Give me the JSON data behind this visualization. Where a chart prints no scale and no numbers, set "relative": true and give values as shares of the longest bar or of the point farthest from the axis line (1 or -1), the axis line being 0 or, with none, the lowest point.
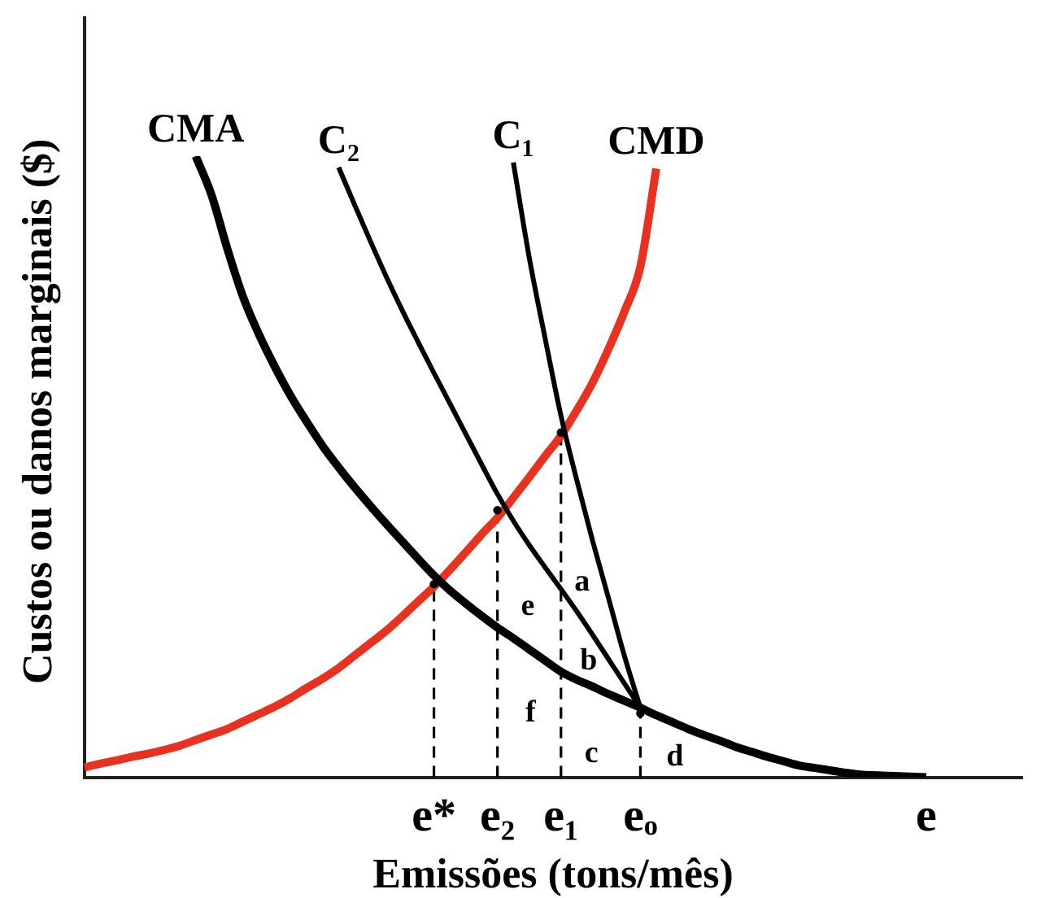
{
  "chart_data": {
    "type": "line",
    "relative": true,
    "xlabel": "Emissões (tons/mês)",
    "ylabel": "Custos ou danos marginais ($)",
    "categories": [
      null,
      null,
      null,
      null,
      null,
      null,
      null,
      null,
      null,
      null,
      null,
      null,
      null,
      null,
      null,
      null,
      null,
      null,
      null,
      null,
      null,
      null,
      "e*",
      null,
      null,
      null,
      "e₂",
      null,
      null,
      null,
      "e₁",
      null,
      null,
      null,
      null,
      "eₒ",
      null,
      null,
      null,
      null,
      null,
      null,
      null,
      null,
      null,
      null,
      null,
      null,
      null,
      null,
      null,
      null,
      null,
      "e",
      null,
      null,
      null,
      null,
      null,
      null
    ],
    "series": [
      {
        "name": "CMA",
        "color": "#000000",
        "values": [
          null,
          null,
          null,
          null,
          null,
          null,
          null,
          1,
          0.937,
          0.85,
          0.772,
          0.712,
          0.66,
          0.613,
          0.572,
          0.533,
          0.499,
          0.467,
          0.437,
          0.408,
          0.38,
          0.352,
          0.325,
          0.301,
          0.28,
          0.26,
          0.241,
          0.224,
          0.206,
          0.188,
          0.17,
          0.157,
          0.146,
          0.134,
          0.123,
          0.112,
          0.1,
          0.089,
          0.078,
          0.068,
          0.059,
          0.049,
          0.041,
          0.033,
          0.026,
          0.019,
          0.015,
          0.011,
          0.007,
          0.004,
          0.003,
          0.002,
          0.001,
          0,
          null,
          null,
          null,
          null,
          null,
          null
        ]
      },
      {
        "name": "C₂",
        "color": "#000000",
        "values": [
          null,
          null,
          null,
          null,
          null,
          null,
          null,
          null,
          null,
          null,
          null,
          null,
          null,
          null,
          null,
          null,
          0.982,
          0.922,
          0.863,
          0.806,
          0.752,
          0.701,
          0.651,
          0.602,
          0.553,
          0.504,
          0.456,
          0.413,
          0.374,
          0.338,
          0.303,
          0.267,
          0.229,
          0.19,
          0.151,
          0.112,
          null,
          null,
          null,
          null,
          null,
          null,
          null,
          null,
          null,
          null,
          null,
          null,
          null,
          null,
          null,
          null,
          null,
          null,
          null,
          null,
          null,
          null,
          null,
          null
        ]
      },
      {
        "name": "C₁",
        "color": "#000000",
        "values": [
          null,
          null,
          null,
          null,
          null,
          null,
          null,
          null,
          null,
          null,
          null,
          null,
          null,
          null,
          null,
          null,
          null,
          null,
          null,
          null,
          null,
          null,
          null,
          null,
          null,
          null,
          null,
          0.99,
          0.837,
          0.707,
          0.582,
          0.478,
          0.38,
          0.288,
          0.195,
          0.112,
          null,
          null,
          null,
          null,
          null,
          null,
          null,
          null,
          null,
          null,
          null,
          null,
          null,
          null,
          null,
          null,
          null,
          null,
          null,
          null,
          null,
          null,
          null,
          null
        ]
      },
      {
        "name": "CMD",
        "color": "#e8311f",
        "values": [
          0.016,
          0.022,
          0.027,
          0.033,
          0.038,
          0.044,
          0.051,
          0.06,
          0.069,
          0.078,
          0.09,
          0.102,
          0.114,
          0.128,
          0.144,
          0.159,
          0.176,
          0.196,
          0.216,
          0.236,
          0.259,
          0.283,
          0.307,
          0.334,
          0.362,
          0.391,
          0.418,
          0.45,
          0.483,
          0.517,
          0.55,
          0.591,
          0.636,
          0.69,
          0.75,
          0.822,
          0.98,
          null,
          null,
          null,
          null,
          null,
          null,
          null,
          null,
          null,
          null,
          null,
          null,
          null,
          null,
          null,
          null,
          null,
          null,
          null,
          null,
          null,
          null,
          null
        ]
      },
      {
        "type": "lollipop",
        "color": "#000000",
        "line_style": "dashed",
        "marker": "circle",
        "values": [
          null,
          null,
          null,
          null,
          null,
          null,
          null,
          null,
          null,
          null,
          null,
          null,
          null,
          null,
          null,
          null,
          null,
          null,
          null,
          null,
          null,
          null,
          0.311,
          null,
          null,
          null,
          0.43,
          null,
          null,
          null,
          0.555,
          null,
          null,
          null,
          null,
          0.103,
          null,
          null,
          null,
          null,
          null,
          null,
          null,
          null,
          null,
          null,
          null,
          null,
          null,
          null,
          null,
          null,
          null,
          null,
          null,
          null,
          null,
          null,
          null,
          null
        ]
      }
    ],
    "annotations": [
      "a",
      "b",
      "c",
      "d",
      "e",
      "f"
    ]
  }
}
